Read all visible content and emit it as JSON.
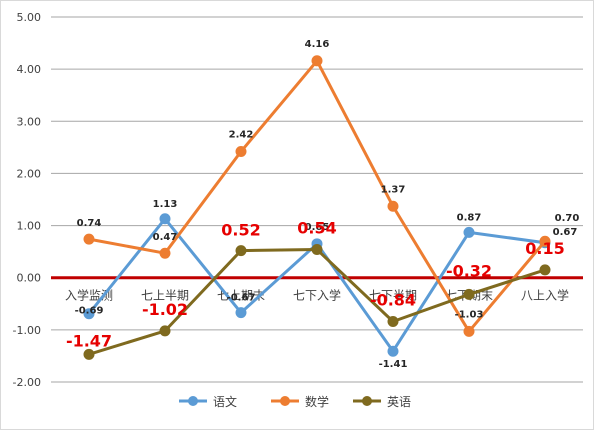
{
  "chart_data": {
    "type": "line",
    "categories": [
      "入学监测",
      "七上半期",
      "七上期末",
      "七下入学",
      "七下半期",
      "七下期末",
      "八上入学"
    ],
    "y_ticks": [
      "5.00",
      "4.00",
      "3.00",
      "2.00",
      "1.00",
      "0.00",
      "-1.00",
      "-2.00"
    ],
    "ylim": [
      -2,
      5
    ],
    "grid": true,
    "zero_line_color": "#c00000",
    "legend_position": "bottom",
    "series": [
      {
        "name": "语文",
        "color": "#5b9bd5",
        "values": [
          -0.69,
          1.13,
          -0.67,
          0.65,
          -1.41,
          0.87,
          0.67
        ],
        "labels": [
          "-0.69",
          "1.13",
          "-0.67",
          "0.65",
          "-1.41",
          "0.87",
          "0.67"
        ]
      },
      {
        "name": "数学",
        "color": "#ed7d31",
        "values": [
          0.74,
          0.47,
          2.42,
          4.16,
          1.37,
          -1.03,
          0.7
        ],
        "labels": [
          "0.74",
          "0.47",
          "2.42",
          "4.16",
          "1.37",
          "-1.03",
          "0.70"
        ]
      },
      {
        "name": "英语",
        "color": "#7f6a1f",
        "values": [
          -1.47,
          -1.02,
          0.52,
          0.54,
          -0.84,
          -0.32,
          0.15
        ],
        "labels": [
          "-1.47",
          "-1.02",
          "0.52",
          "0.54",
          "-0.84",
          "-0.32",
          "0.15"
        ]
      }
    ]
  }
}
